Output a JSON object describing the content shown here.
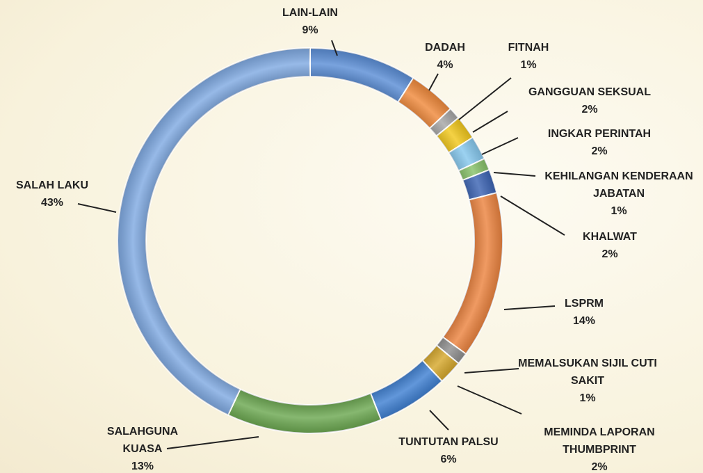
{
  "chart_data": {
    "type": "donut",
    "categories": [
      "LAIN-LAIN",
      "DADAH",
      "FITNAH",
      "GANGGUAN SEKSUAL",
      "INGKAR PERINTAH",
      "KEHILANGAN KENDERAAN JABATAN",
      "KHALWAT",
      "LSPRM",
      "MEMALSUKAN SIJIL CUTI SAKIT",
      "MEMINDA LAPORAN THUMBPRINT",
      "TUNTUTAN PALSU",
      "SALAHGUNA KUASA",
      "SALAH LAKU"
    ],
    "values": [
      9,
      4,
      1,
      2,
      2,
      1,
      2,
      14,
      1,
      2,
      6,
      13,
      43
    ],
    "value_labels": [
      "9%",
      "4%",
      "1%",
      "2%",
      "2%",
      "1%",
      "2%",
      "14%",
      "1%",
      "2%",
      "6%",
      "13%",
      "43%"
    ],
    "colors": [
      "#5b8ed6",
      "#f08a3c",
      "#a6a6a6",
      "#f2c81c",
      "#86c8ee",
      "#88c26a",
      "#3c64b4",
      "#ec8440",
      "#8f8f8f",
      "#d6a82c",
      "#3f80d2",
      "#6ca851",
      "#80aae2"
    ]
  }
}
